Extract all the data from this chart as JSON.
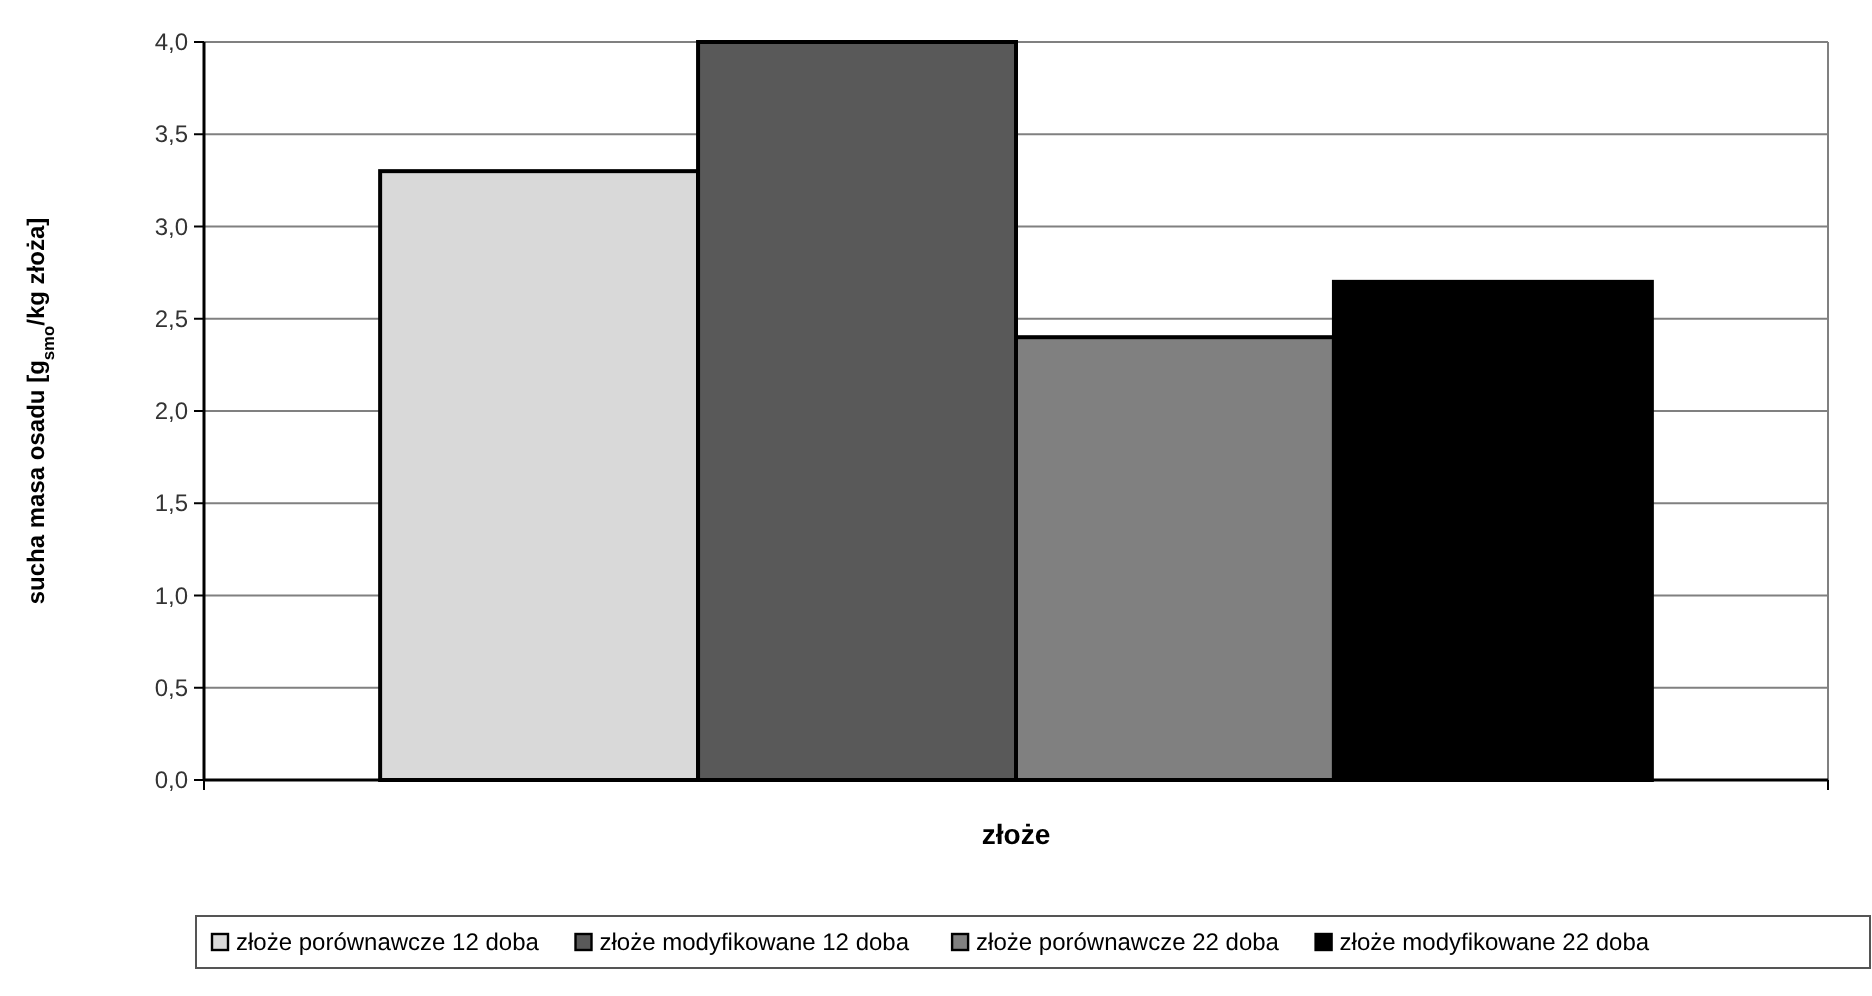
{
  "chart_data": {
    "type": "bar",
    "xlabel": "złoże",
    "ylabel": "sucha masa osadu [g$_{smo}$/kg złoża]",
    "categories": [
      null
    ],
    "series": [
      {
        "name": "złoże porównawcze 12 doba",
        "color": "#d9d9d9",
        "values": [
          3.3
        ]
      },
      {
        "name": "złoże modyfikowane 12 doba",
        "color": "#595959",
        "values": [
          4.0
        ]
      },
      {
        "name": "złoże porównawcze 22 doba",
        "color": "#808080",
        "values": [
          2.4
        ]
      },
      {
        "name": "złoże modyfikowane 22 doba",
        "color": "#000000",
        "values": [
          2.7
        ]
      }
    ],
    "ylim": [
      0,
      4
    ],
    "yticks": [
      {
        "value": 0,
        "label": "0,0"
      },
      {
        "value": 0.5,
        "label": "0,5"
      },
      {
        "value": 1,
        "label": "1,0"
      },
      {
        "value": 1.5,
        "label": "1,5"
      },
      {
        "value": 2,
        "label": "2,0"
      },
      {
        "value": 2.5,
        "label": "2,5"
      },
      {
        "value": 3,
        "label": "3,0"
      },
      {
        "value": 3.5,
        "label": "3,5"
      },
      {
        "value": 4,
        "label": "4,0"
      }
    ],
    "grid": "y",
    "legend": "bottom"
  }
}
